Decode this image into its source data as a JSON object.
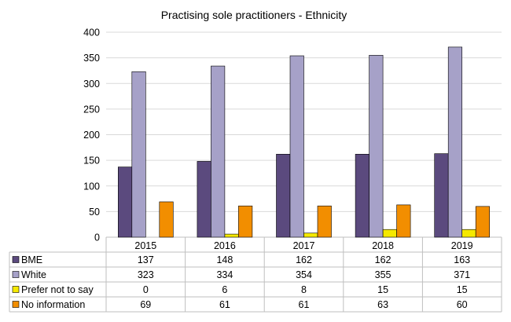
{
  "chart_data": {
    "type": "bar",
    "title": "Practising sole practitioners - Ethnicity",
    "xlabel": "",
    "ylabel": "",
    "categories": [
      "2015",
      "2016",
      "2017",
      "2018",
      "2019"
    ],
    "ylim": [
      0,
      400
    ],
    "yticks": [
      0,
      50,
      100,
      150,
      200,
      250,
      300,
      350,
      400
    ],
    "grid": true,
    "legend": "data-table-left",
    "series": [
      {
        "name": "BME",
        "color": "#5b4a7e",
        "values": [
          137,
          148,
          162,
          162,
          163
        ]
      },
      {
        "name": "White",
        "color": "#a6a1c8",
        "values": [
          323,
          334,
          354,
          355,
          371
        ]
      },
      {
        "name": "Prefer not to say",
        "color": "#f5e900",
        "values": [
          0,
          6,
          8,
          15,
          15
        ]
      },
      {
        "name": "No information",
        "color": "#f28e00",
        "values": [
          69,
          61,
          61,
          63,
          60
        ]
      }
    ]
  }
}
